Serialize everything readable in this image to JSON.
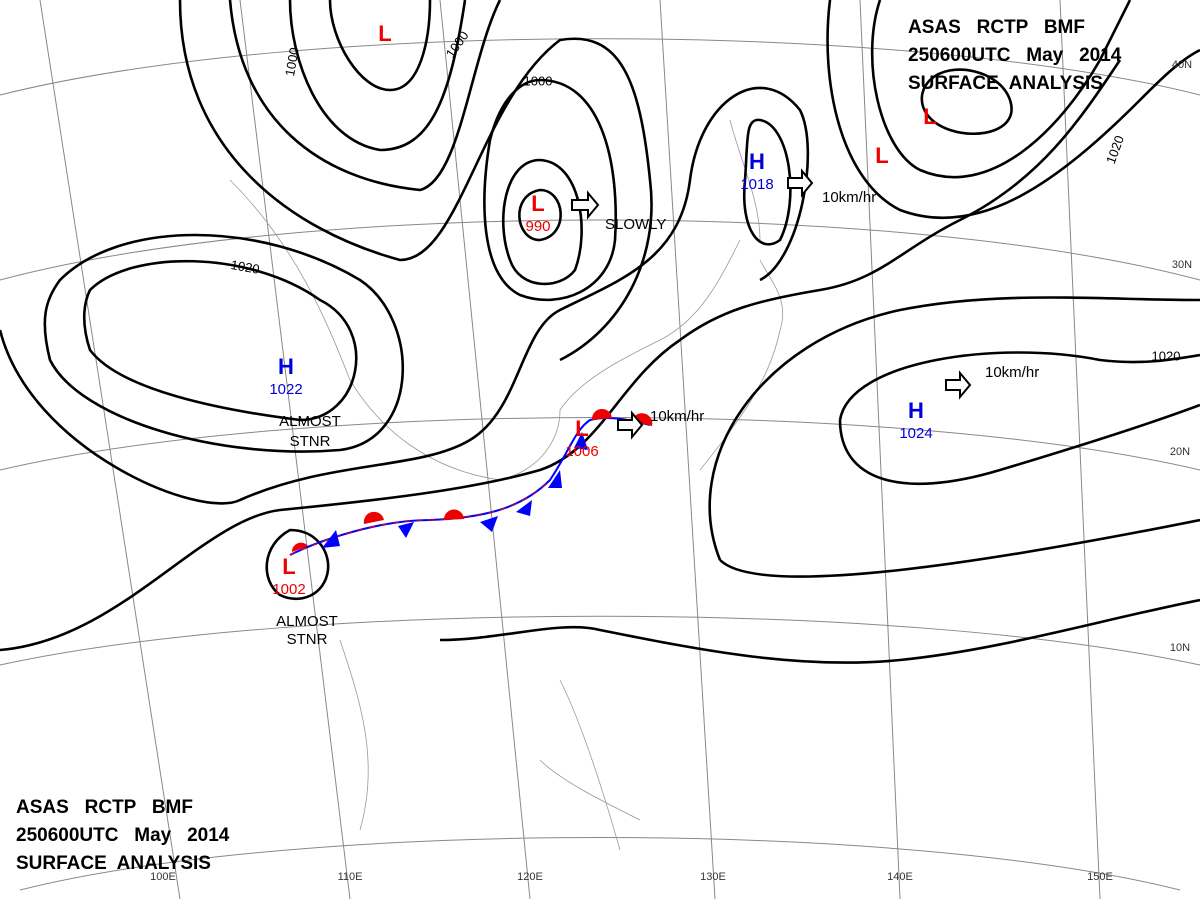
{
  "header": {
    "lines": [
      "ASAS   RCTP   BMF",
      "250600UTC   May   2014",
      "SURFACE  ANALYSIS"
    ]
  },
  "pressure_centers": [
    {
      "symbol": "L"
    },
    {
      "symbol": "L",
      "value": 990
    },
    {
      "symbol": "H",
      "value": 1018
    },
    {
      "symbol": "L"
    },
    {
      "symbol": "L"
    },
    {
      "symbol": "H",
      "value": 1022
    },
    {
      "symbol": "H",
      "value": 1024
    },
    {
      "symbol": "L",
      "value": 1006
    },
    {
      "symbol": "L",
      "value": 1002
    }
  ],
  "isobar_labels": [
    1000,
    1000,
    1000,
    1020,
    1020,
    1020
  ],
  "motions": [
    "SLOWLY",
    "10km/hr",
    "10km/hr",
    "10km/hr",
    "ALMOST",
    "STNR",
    "ALMOST",
    "STNR"
  ],
  "grid_labels": {
    "longitudes": [
      "100E",
      "110E",
      "120E",
      "130E",
      "140E",
      "150E"
    ],
    "latitudes": [
      "40N",
      "30N",
      "20N",
      "10N"
    ]
  }
}
